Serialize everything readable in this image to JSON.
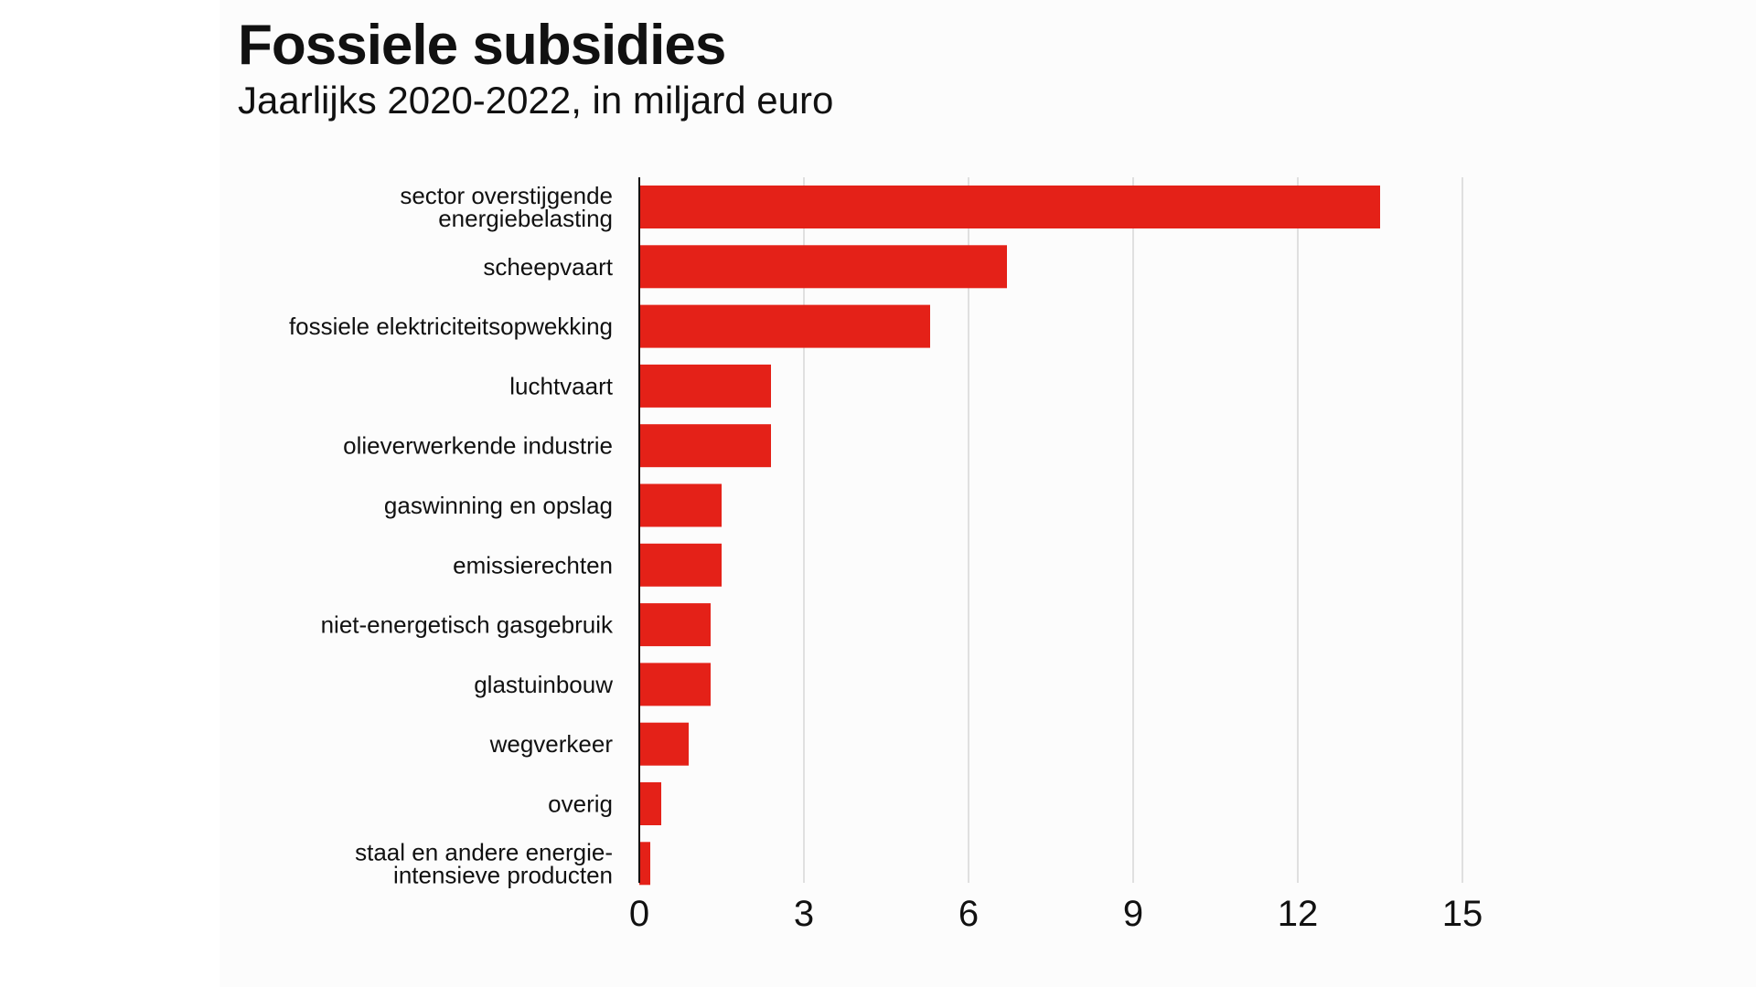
{
  "chart_data": {
    "type": "bar",
    "orientation": "horizontal",
    "title": "Fossiele subsidies",
    "subtitle": "Jaarlijks 2020-2022, in miljard euro",
    "xlabel": "",
    "ylabel": "",
    "xlim": [
      0,
      15
    ],
    "xticks": [
      0,
      3,
      6,
      9,
      12,
      15
    ],
    "grid": "vertical",
    "bar_color": "#e42118",
    "categories": [
      [
        "sector overstijgende",
        "energiebelasting"
      ],
      [
        "scheepvaart"
      ],
      [
        "fossiele elektriciteitsopwekking"
      ],
      [
        "luchtvaart"
      ],
      [
        "olieverwerkende industrie"
      ],
      [
        "gaswinning en opslag"
      ],
      [
        "emissierechten"
      ],
      [
        "niet-energetisch gasgebruik"
      ],
      [
        "glastuinbouw"
      ],
      [
        "wegverkeer"
      ],
      [
        "overig"
      ],
      [
        "staal en andere energie-",
        "intensieve producten"
      ]
    ],
    "values": [
      13.5,
      6.7,
      5.3,
      2.4,
      2.4,
      1.5,
      1.5,
      1.3,
      1.3,
      0.9,
      0.4,
      0.2
    ]
  }
}
